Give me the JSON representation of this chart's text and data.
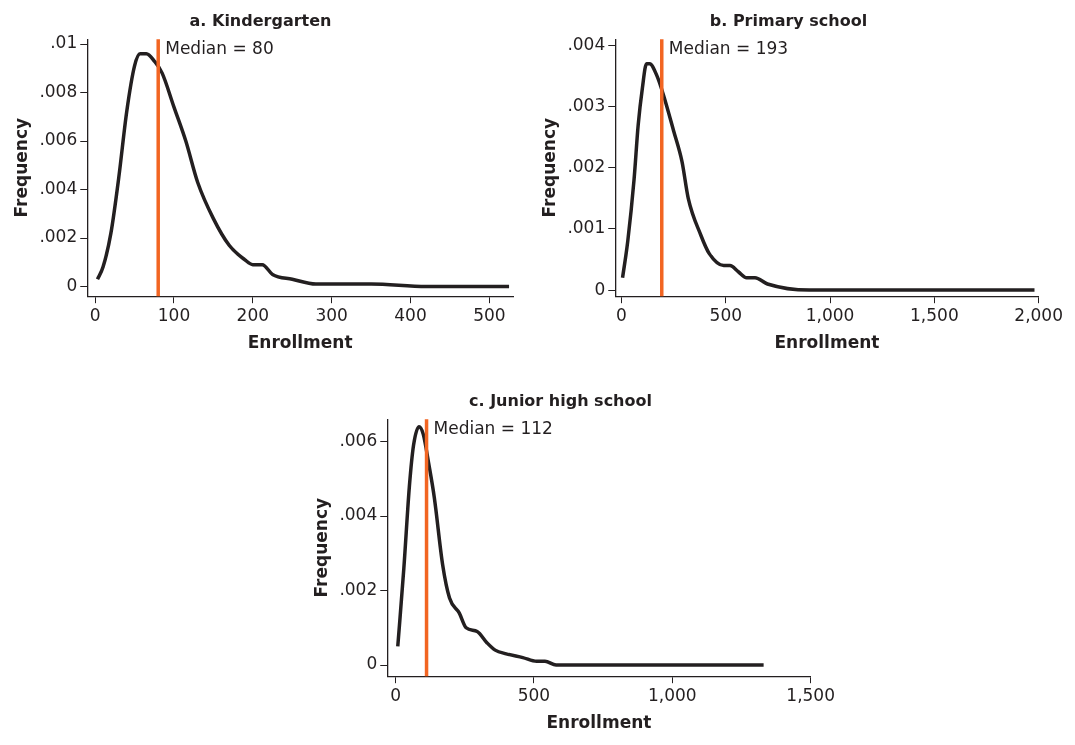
{
  "chart_data": [
    {
      "type": "line",
      "title": "a. Kindergarten",
      "xlabel": "Enrollment",
      "ylabel": "Frequency",
      "grid": false,
      "series": [
        {
          "color": "#231f20",
          "x": [
            3,
            10,
            20,
            30,
            40,
            50,
            57,
            65,
            75,
            85,
            100,
            115,
            130,
            150,
            170,
            190,
            200,
            212,
            225,
            250,
            280,
            350,
            420,
            480,
            525
          ],
          "values": [
            0.0003,
            0.0008,
            0.0022,
            0.0045,
            0.0072,
            0.0091,
            0.0096,
            0.0096,
            0.0093,
            0.0088,
            0.0074,
            0.006,
            0.0043,
            0.0028,
            0.0017,
            0.0011,
            0.0009,
            0.0009,
            0.0005,
            0.0003,
            0.0001,
            0.0001,
            0.0,
            0.0,
            0.0
          ]
        }
      ],
      "xlim": [
        -10,
        530
      ],
      "xticks": [
        0,
        100,
        200,
        300,
        400,
        500
      ],
      "ylim": [
        -0.0004,
        0.0102
      ],
      "yticks": [
        {
          "value": 0,
          "label": "0"
        },
        {
          "value": 0.002,
          "label": ".002"
        },
        {
          "value": 0.004,
          "label": ".004"
        },
        {
          "value": 0.006,
          "label": ".006"
        },
        {
          "value": 0.008,
          "label": ".008"
        },
        {
          "value": 0.01,
          "label": ".01"
        }
      ],
      "ref_lines": [
        {
          "axis": "x",
          "value": 80,
          "label": "Median = 80",
          "color": "#f26522"
        }
      ]
    },
    {
      "type": "line",
      "title": "b. Primary school",
      "xlabel": "Enrollment",
      "ylabel": "Frequency",
      "grid": false,
      "series": [
        {
          "color": "#231f20",
          "x": [
            5,
            30,
            60,
            80,
            100,
            120,
            135,
            170,
            200,
            250,
            290,
            320,
            380,
            420,
            490,
            520,
            560,
            600,
            640,
            700,
            900,
            1500,
            1980
          ],
          "values": [
            0.0002,
            0.0008,
            0.0018,
            0.0027,
            0.0033,
            0.0037,
            0.0037,
            0.0035,
            0.0032,
            0.0026,
            0.0021,
            0.0015,
            0.0009,
            0.0006,
            0.0004,
            0.0004,
            0.0003,
            0.0002,
            0.0002,
            0.0001,
            0.0,
            0.0,
            0.0
          ]
        }
      ],
      "xlim": [
        -30,
        2000
      ],
      "xticks": [
        0,
        500,
        {
          "value": 1000,
          "label": "1,000"
        },
        {
          "value": 1500,
          "label": "1,500"
        },
        {
          "value": 2000,
          "label": "2,000"
        }
      ],
      "ylim": [
        -0.0001,
        0.0041
      ],
      "yticks": [
        {
          "value": 0,
          "label": "0"
        },
        {
          "value": 0.001,
          "label": ".001"
        },
        {
          "value": 0.002,
          "label": ".002"
        },
        {
          "value": 0.003,
          "label": ".003"
        },
        {
          "value": 0.004,
          "label": ".004"
        }
      ],
      "ref_lines": [
        {
          "axis": "x",
          "value": 193,
          "label": "Median = 193",
          "color": "#f26522"
        }
      ]
    },
    {
      "type": "line",
      "title": "c. Junior high school",
      "xlabel": "Enrollment",
      "ylabel": "Frequency",
      "grid": false,
      "series": [
        {
          "color": "#231f20",
          "x": [
            8,
            30,
            50,
            65,
            85,
            100,
            120,
            140,
            170,
            195,
            230,
            255,
            295,
            330,
            360,
            400,
            460,
            510,
            540,
            580,
            620,
            800,
            1330
          ],
          "values": [
            0.0005,
            0.0026,
            0.0048,
            0.0059,
            0.0064,
            0.0062,
            0.0054,
            0.0045,
            0.0027,
            0.0018,
            0.0014,
            0.001,
            0.0009,
            0.0006,
            0.0004,
            0.0003,
            0.0002,
            0.0001,
            0.0001,
            0.0,
            0.0,
            0.0,
            0.0
          ]
        }
      ],
      "xlim": [
        -30,
        1500
      ],
      "xticks": [
        0,
        500,
        {
          "value": 1000,
          "label": "1,000"
        },
        {
          "value": 1500,
          "label": "1,500"
        }
      ],
      "ylim": [
        -0.0003,
        0.0066
      ],
      "yticks": [
        {
          "value": 0,
          "label": "0"
        },
        {
          "value": 0.002,
          "label": ".002"
        },
        {
          "value": 0.004,
          "label": ".004"
        },
        {
          "value": 0.006,
          "label": ".006"
        }
      ],
      "ref_lines": [
        {
          "axis": "x",
          "value": 112,
          "label": "Median = 112",
          "color": "#f26522"
        }
      ]
    }
  ]
}
